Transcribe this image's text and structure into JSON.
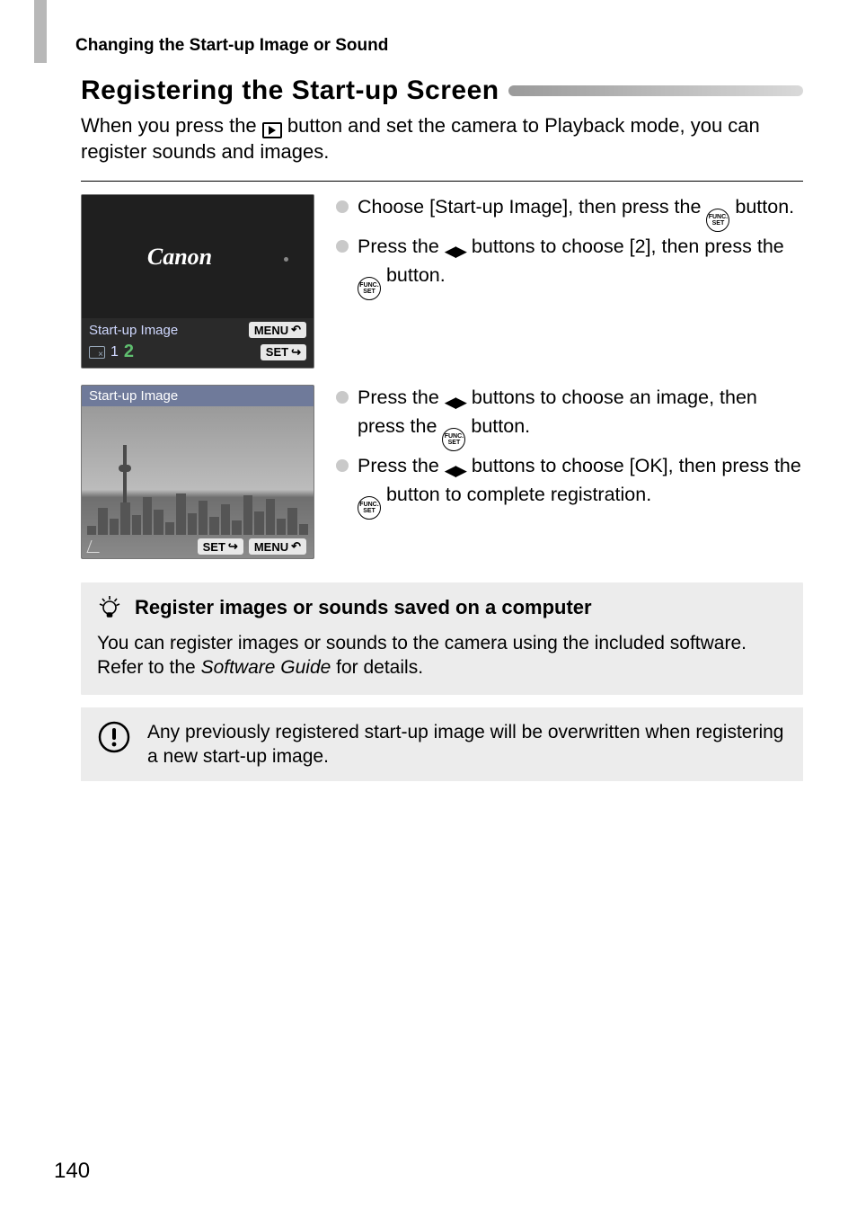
{
  "breadcrumb": "Changing the Start-up Image or Sound",
  "heading": "Registering the Start-up Screen",
  "intro_parts": {
    "a": "When you press the ",
    "b": " button and set the camera to Playback mode, you can register sounds and images."
  },
  "screenshot1": {
    "logo": "Canon",
    "label": "Start-up Image",
    "menu_badge": "MENU",
    "set_badge": "SET",
    "option1": "1",
    "option2": "2"
  },
  "screenshot2": {
    "header": "Start-up Image",
    "set_badge": "SET",
    "menu_badge": "MENU"
  },
  "steps1": [
    {
      "a": "Choose [Start-up Image], then press the ",
      "b": " button."
    },
    {
      "a": "Press the ",
      "mid": " buttons to choose [2], then press the ",
      "b": " button."
    }
  ],
  "steps2": [
    {
      "a": "Press the ",
      "mid": " buttons to choose an image, then press the ",
      "b": " button."
    },
    {
      "a": "Press the ",
      "mid": " buttons to choose [OK], then press the ",
      "b": " button to complete registration."
    }
  ],
  "tip": {
    "title": "Register images or sounds saved on a computer",
    "body_a": "You can register images or sounds to the camera using the included software. Refer to the ",
    "body_em": "Software Guide",
    "body_b": " for details."
  },
  "warning": "Any previously registered start-up image will be overwritten when registering a new start-up image.",
  "page_number": "140",
  "colors": {
    "page_bg": "#ffffff",
    "tab": "#b8b8b8",
    "bar_gradient_from": "#9a9a9a",
    "bar_gradient_to": "#d9d9d9",
    "box_bg": "#ececec",
    "scr_bg": "#2a2a2a",
    "option2_color": "#5fbf6f",
    "scr2_header_bg": "#6f7a9a"
  },
  "skyline_heights": [
    10,
    30,
    18,
    36,
    22,
    42,
    28,
    14,
    46,
    24,
    38,
    20,
    34,
    16,
    44,
    26,
    40,
    18,
    30,
    12
  ]
}
